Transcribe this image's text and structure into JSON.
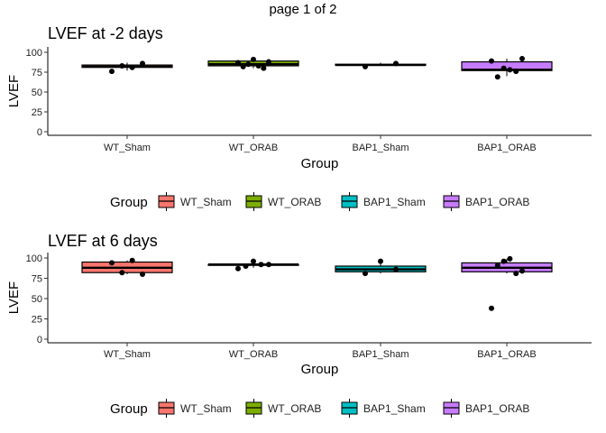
{
  "page": {
    "title": "page 1 of 2"
  },
  "colors": {
    "WT_Sham": "#F8766D",
    "WT_ORAB": "#7CAE00",
    "BAP1_Sham": "#00BFC4",
    "BAP1_ORAB": "#C77CFF"
  },
  "chart_data": [
    {
      "type": "box",
      "title": "LVEF at -2 days",
      "xlabel": "Group",
      "ylabel": "LVEF",
      "ylim": [
        0,
        100
      ],
      "yticks": [
        0,
        25,
        50,
        75,
        100
      ],
      "legend": {
        "title": "Group",
        "position": "bottom"
      },
      "categories": [
        "WT_Sham",
        "WT_ORAB",
        "BAP1_Sham",
        "BAP1_ORAB"
      ],
      "boxes": [
        {
          "group": "WT_Sham",
          "q1": 81,
          "median": 82,
          "q3": 84,
          "whisker_low": 77,
          "whisker_high": 87
        },
        {
          "group": "WT_ORAB",
          "q1": 83,
          "median": 85,
          "q3": 89,
          "whisker_low": 80,
          "whisker_high": 92
        },
        {
          "group": "BAP1_Sham",
          "q1": 84,
          "median": 84,
          "q3": 85,
          "whisker_low": 83,
          "whisker_high": 87
        },
        {
          "group": "BAP1_ORAB",
          "q1": 77,
          "median": 78,
          "q3": 88,
          "whisker_low": 70,
          "whisker_high": 92
        }
      ],
      "points": [
        {
          "group": "WT_Sham",
          "values": [
            76,
            83,
            81,
            86
          ]
        },
        {
          "group": "WT_ORAB",
          "values": [
            87,
            82,
            85,
            91,
            83,
            80,
            88
          ]
        },
        {
          "group": "BAP1_Sham",
          "values": [
            82,
            86
          ]
        },
        {
          "group": "BAP1_ORAB",
          "values": [
            89,
            69,
            80,
            78,
            76,
            92
          ]
        }
      ]
    },
    {
      "type": "box",
      "title": "LVEF at 6 days",
      "xlabel": "Group",
      "ylabel": "LVEF",
      "ylim": [
        0,
        100
      ],
      "yticks": [
        0,
        25,
        50,
        75,
        100
      ],
      "legend": {
        "title": "Group",
        "position": "bottom"
      },
      "categories": [
        "WT_Sham",
        "WT_ORAB",
        "BAP1_Sham",
        "BAP1_ORAB"
      ],
      "boxes": [
        {
          "group": "WT_Sham",
          "q1": 82,
          "median": 88,
          "q3": 95,
          "whisker_low": 80,
          "whisker_high": 97
        },
        {
          "group": "WT_ORAB",
          "q1": 91,
          "median": 92,
          "q3": 92,
          "whisker_low": 88,
          "whisker_high": 96
        },
        {
          "group": "BAP1_Sham",
          "q1": 83,
          "median": 86,
          "q3": 90,
          "whisker_low": 81,
          "whisker_high": 96
        },
        {
          "group": "BAP1_ORAB",
          "q1": 83,
          "median": 88,
          "q3": 94,
          "whisker_low": 81,
          "whisker_high": 99
        }
      ],
      "points": [
        {
          "group": "WT_Sham",
          "values": [
            94,
            82,
            97,
            80
          ]
        },
        {
          "group": "WT_ORAB",
          "values": [
            87,
            90,
            96,
            92,
            92
          ]
        },
        {
          "group": "BAP1_Sham",
          "values": [
            81,
            96,
            86
          ]
        },
        {
          "group": "BAP1_ORAB",
          "values": [
            38,
            91,
            96,
            99,
            81,
            84
          ]
        }
      ]
    }
  ]
}
